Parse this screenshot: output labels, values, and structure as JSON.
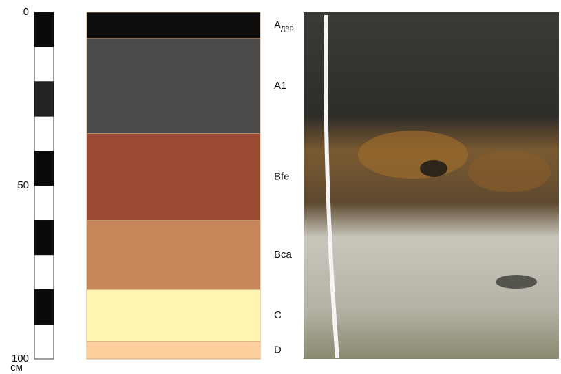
{
  "scale": {
    "range": [
      0,
      100
    ],
    "ticks": [
      0,
      50,
      100
    ],
    "unit": "см"
  },
  "horizons": [
    {
      "label": "A",
      "sub": "дер",
      "top": 0,
      "bottom": 7.5,
      "color": "#0e0e0e"
    },
    {
      "label": "A1",
      "top": 7.5,
      "bottom": 35,
      "color": "#4a4a4a"
    },
    {
      "label": "Bfe",
      "top": 35,
      "bottom": 60,
      "color": "#9b4a33"
    },
    {
      "label": "Bca",
      "top": 60,
      "bottom": 80,
      "color": "#c8875a"
    },
    {
      "label": "C",
      "top": 80,
      "bottom": 95,
      "color": "#fff5b0"
    },
    {
      "label": "D",
      "top": 95,
      "bottom": 100,
      "color": "#fdd09d"
    }
  ]
}
